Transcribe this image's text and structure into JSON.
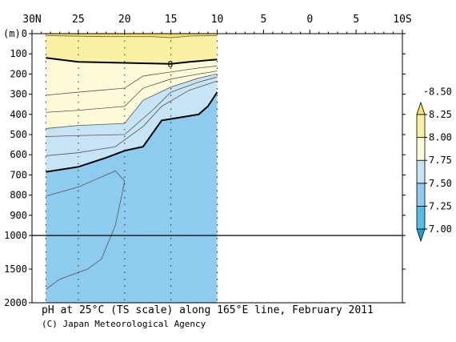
{
  "chart_data": {
    "type": "heatmap",
    "title": "pH at 25°C (TS scale) along 165°E line, February 2011",
    "credit": "(C) Japan Meteorological Agency",
    "xlabel": "",
    "ylabel": "(m)",
    "x_ticks": [
      "30N",
      "25",
      "20",
      "15",
      "10",
      "5",
      "0",
      "5",
      "10S"
    ],
    "x_values": [
      30,
      25,
      20,
      15,
      10,
      5,
      0,
      -5,
      -10
    ],
    "xlim": [
      30,
      -10
    ],
    "y_ticks_upper": [
      "0",
      "100",
      "200",
      "300",
      "400",
      "500",
      "600",
      "700",
      "800",
      "900",
      "1000"
    ],
    "y_ticks_lower": [
      "1500",
      "2000"
    ],
    "ylim": [
      2000,
      0
    ],
    "y_axis_break": 1000,
    "data_extent_lat": [
      28.5,
      10
    ],
    "station_lats": [
      28.5,
      25,
      20,
      15,
      10
    ],
    "colorbar": {
      "labels": [
        "7.00",
        "7.25",
        "7.50",
        "7.75",
        "8.00",
        "8.25",
        "8.50"
      ],
      "bounds": [
        7.0,
        7.25,
        7.5,
        7.75,
        8.0,
        8.25,
        8.5
      ],
      "colors": [
        "#1aa3d9",
        "#55bbe8",
        "#8ecbef",
        "#c6e4f6",
        "#fdfbd9",
        "#fbf1a4",
        "#f7e266"
      ]
    },
    "contour_label": "8",
    "contours": [
      {
        "level": 8.2,
        "band": 6,
        "depth_by_lat": [
          [
            28.5,
            10
          ],
          [
            22,
            15
          ],
          [
            17,
            15
          ],
          [
            15,
            20
          ],
          [
            13,
            12
          ],
          [
            10,
            10
          ]
        ]
      },
      {
        "level": 8.0,
        "band": 5,
        "bold": true,
        "depth_by_lat": [
          [
            28.5,
            120
          ],
          [
            25,
            140
          ],
          [
            20,
            145
          ],
          [
            15,
            150
          ],
          [
            13,
            140
          ],
          [
            10,
            128
          ]
        ]
      },
      {
        "level": 7.95,
        "band": 4,
        "depth_by_lat": [
          [
            28.5,
            305
          ],
          [
            25,
            290
          ],
          [
            20,
            270
          ],
          [
            18,
            210
          ],
          [
            15,
            190
          ],
          [
            12,
            170
          ],
          [
            10,
            160
          ]
        ]
      },
      {
        "level": 7.9,
        "band": 4,
        "depth_by_lat": [
          [
            28.5,
            390
          ],
          [
            25,
            380
          ],
          [
            20,
            360
          ],
          [
            18,
            270
          ],
          [
            15,
            225
          ],
          [
            12,
            200
          ],
          [
            10,
            185
          ]
        ]
      },
      {
        "level": 7.75,
        "band": 3,
        "depth_by_lat": [
          [
            28.5,
            470
          ],
          [
            25,
            455
          ],
          [
            20,
            445
          ],
          [
            18,
            330
          ],
          [
            15,
            265
          ],
          [
            12,
            220
          ],
          [
            10,
            200
          ]
        ]
      },
      {
        "level": 7.7,
        "band": 3,
        "depth_by_lat": [
          [
            28.5,
            510
          ],
          [
            25,
            505
          ],
          [
            20,
            500
          ],
          [
            17,
            380
          ],
          [
            15,
            290
          ],
          [
            12,
            240
          ],
          [
            10,
            215
          ]
        ]
      },
      {
        "level": 7.6,
        "band": 2,
        "depth_by_lat": [
          [
            28.5,
            605
          ],
          [
            25,
            590
          ],
          [
            21,
            560
          ],
          [
            18,
            460
          ],
          [
            16,
            360
          ],
          [
            13,
            280
          ],
          [
            10,
            235
          ]
        ]
      },
      {
        "level": 7.5,
        "band": 2,
        "bold": true,
        "depth_by_lat": [
          [
            28.5,
            685
          ],
          [
            25,
            660
          ],
          [
            22,
            615
          ],
          [
            20,
            580
          ],
          [
            18,
            560
          ],
          [
            16,
            430
          ],
          [
            14,
            415
          ],
          [
            12,
            400
          ],
          [
            11,
            360
          ],
          [
            10,
            290
          ]
        ]
      },
      {
        "level": 7.45,
        "band": 1,
        "depth_by_lat": [
          [
            28.5,
            805
          ],
          [
            25,
            760
          ],
          [
            23,
            720
          ],
          [
            21,
            680
          ],
          [
            20,
            730
          ],
          [
            20.3,
            800
          ],
          [
            21,
            950
          ],
          [
            22.5,
            1350
          ],
          [
            24,
            1500
          ],
          [
            27,
            1650
          ],
          [
            28.5,
            1800
          ]
        ]
      }
    ]
  }
}
